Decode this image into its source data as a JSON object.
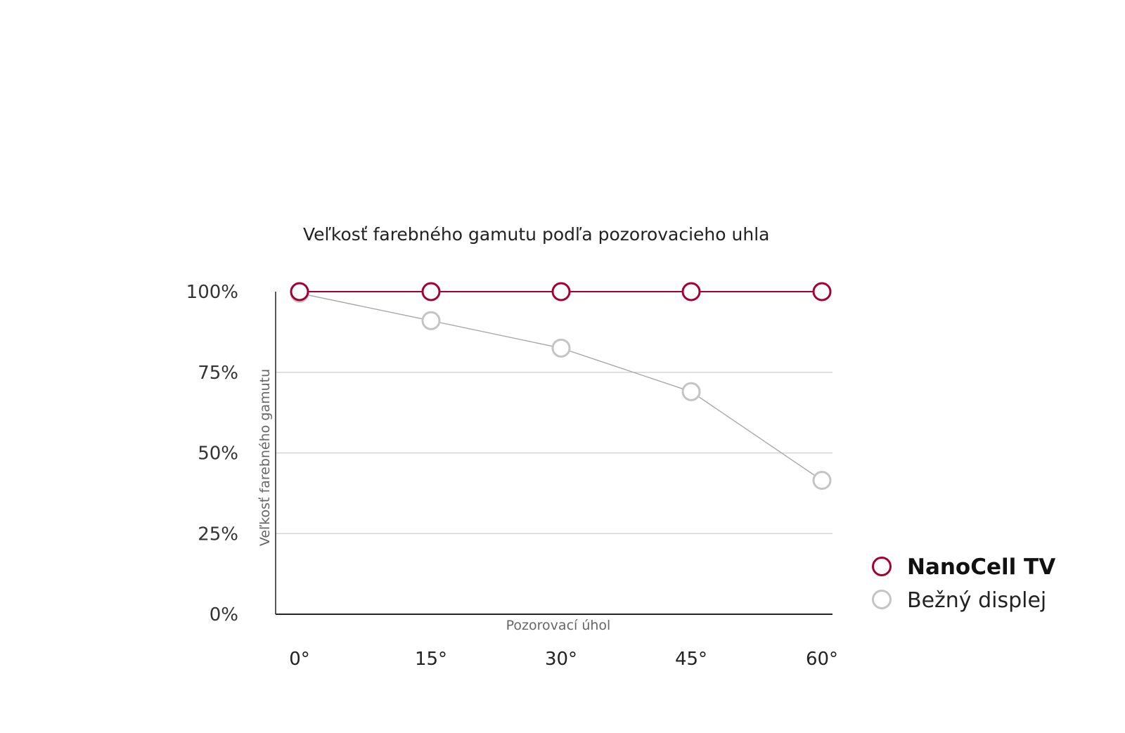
{
  "chart_data": {
    "type": "line",
    "title": "Veľkosť farebného gamutu podľa pozorovacieho uhla",
    "xlabel": "Pozorovací úhol",
    "ylabel": "Veľkosť farebného gamutu",
    "categories": [
      "0°",
      "15°",
      "30°",
      "45°",
      "60°"
    ],
    "y_tick_labels": [
      "0%",
      "25%",
      "50%",
      "75%",
      "100%"
    ],
    "y_ticks": [
      0,
      25,
      50,
      75,
      100
    ],
    "ylim": [
      0,
      100
    ],
    "grid": true,
    "legend_position": "right",
    "series": [
      {
        "name": "NanoCell TV",
        "values": [
          100,
          100,
          100,
          100,
          100
        ],
        "color": "#a50034"
      },
      {
        "name": "Bežný displej",
        "values": [
          99.5,
          91,
          82.5,
          69,
          41.5
        ],
        "color": "#c4c4c4"
      }
    ]
  },
  "colors": {
    "accent": "#a50034",
    "grey_marker": "#c4c4c4",
    "grey_line": "#a8a8a8",
    "gridline": "#d6d6d6",
    "axis": "#222222"
  }
}
